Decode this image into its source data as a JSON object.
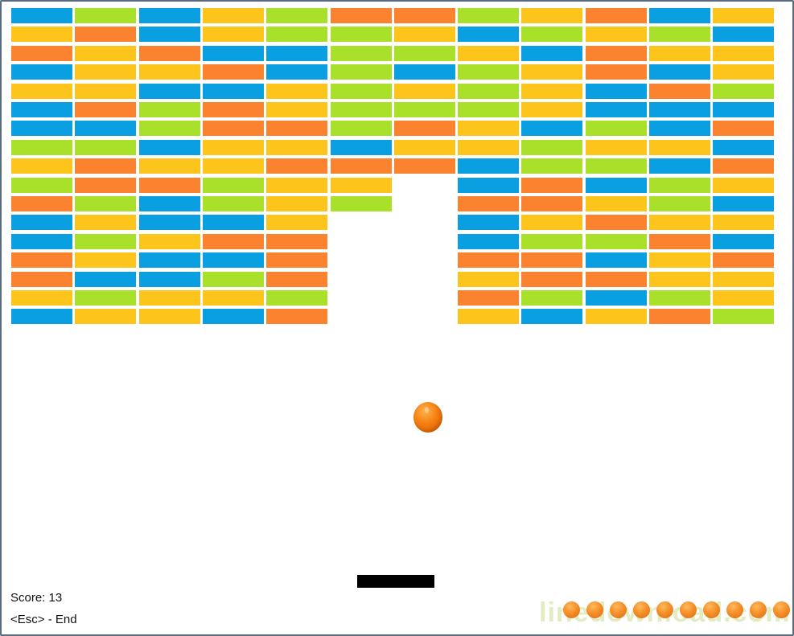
{
  "game": {
    "score_text": "Score: 13",
    "controls_text": "<Esc> - End"
  },
  "palette": {
    "B": "#0a9fe0",
    "G": "#a9e02a",
    "Y": "#fdc51c",
    "O": "#fb8330"
  },
  "bricks": {
    "columns": 12,
    "rows": [
      "BGBYGOOGYOBY",
      "YOBYGGYBGYGB",
      "OYOBBGGYBOYY",
      "BYYOBGBGYOBY",
      "YYBBYGYGYBOG",
      "BOGOYGGGYBBB",
      "BBGOOGOYBGBO",
      "GGBYYBYYGYYB",
      "YOYYOOOBGGBO",
      "GOOGYY.BOBGY",
      "OGBGYG.OOYGB",
      "BYBBY..BYOYY",
      "BGYOO..BGGOB",
      "OYBBO..OOBYO",
      "OBBGO..YOOYY",
      "YGYYG..OGBGY",
      "BYYBO..YBYOG"
    ]
  },
  "watermark": {
    "text": "linedownload.com",
    "ball_count": 10
  }
}
